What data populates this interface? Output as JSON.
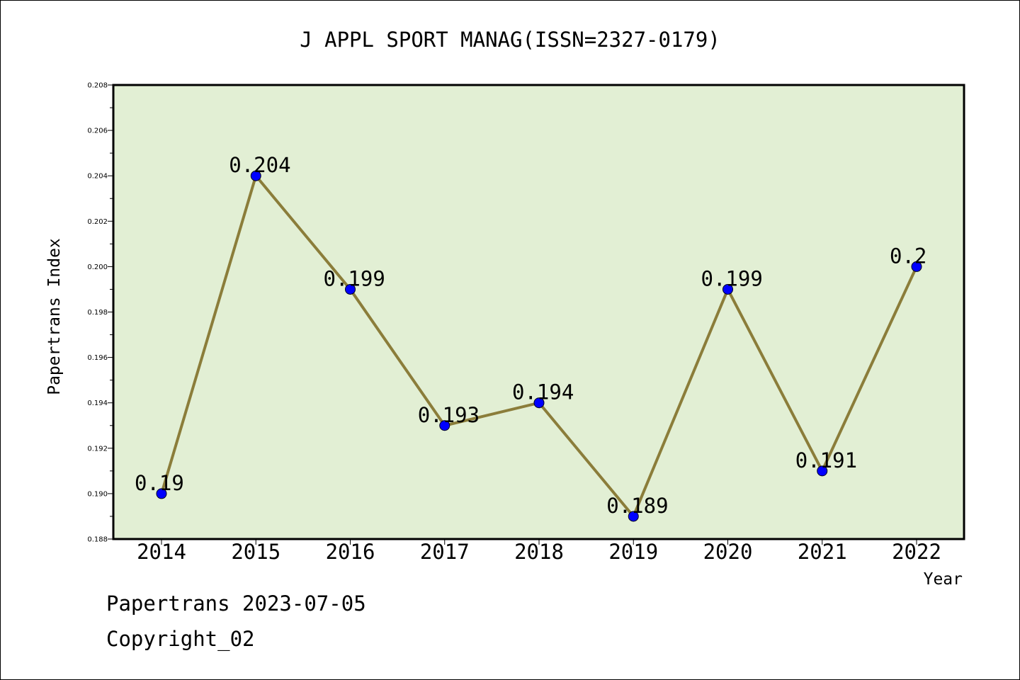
{
  "chart_data": {
    "type": "line",
    "title": "J APPL SPORT MANAG(ISSN=2327-0179)",
    "xlabel": "Year",
    "ylabel": "Papertrans Index",
    "categories": [
      "2014",
      "2015",
      "2016",
      "2017",
      "2018",
      "2019",
      "2020",
      "2021",
      "2022"
    ],
    "values": [
      0.19,
      0.204,
      0.199,
      0.193,
      0.194,
      0.189,
      0.199,
      0.191,
      0.2
    ],
    "data_labels": [
      "0.19",
      "0.204",
      "0.199",
      "0.193",
      "0.194",
      "0.189",
      "0.199",
      "0.191",
      "0.2"
    ],
    "ylim": [
      0.188,
      0.208
    ],
    "yticks": [
      "0.188",
      "0.190",
      "0.192",
      "0.194",
      "0.196",
      "0.198",
      "0.200",
      "0.202",
      "0.204",
      "0.206",
      "0.208"
    ],
    "grid": false,
    "colors": {
      "plot_background": "#e2efd4",
      "line": "#8b7d3a",
      "marker": "#0000ff"
    }
  },
  "footer": {
    "date_text": "Papertrans 2023-07-05",
    "copyright_text": "Copyright_02"
  }
}
